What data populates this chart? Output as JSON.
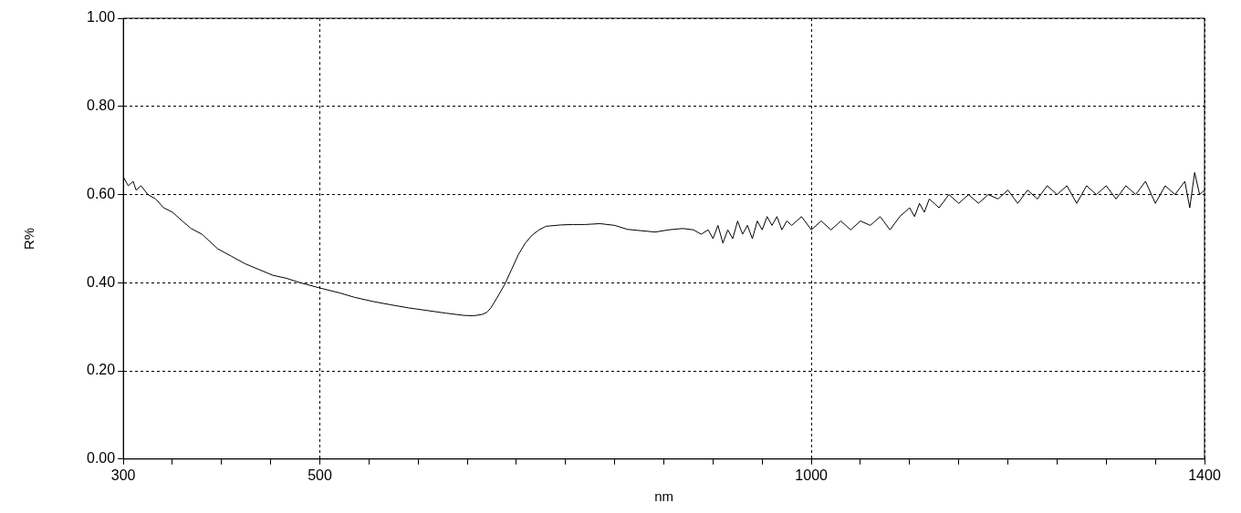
{
  "chart_data": {
    "type": "line",
    "xlabel": "nm",
    "ylabel": "R%",
    "xlim": [
      300,
      1400
    ],
    "ylim": [
      0,
      1
    ],
    "xticks": [
      300,
      {
        "value": 350,
        "label": null
      },
      {
        "value": 400,
        "label": null
      },
      {
        "value": 450,
        "label": null
      },
      500,
      {
        "value": 550,
        "label": null
      },
      {
        "value": 600,
        "label": null
      },
      {
        "value": 650,
        "label": null
      },
      {
        "value": 700,
        "label": null
      },
      {
        "value": 750,
        "label": null
      },
      {
        "value": 800,
        "label": null
      },
      {
        "value": 850,
        "label": null
      },
      {
        "value": 900,
        "label": null
      },
      {
        "value": 950,
        "label": null
      },
      1000,
      {
        "value": 1050,
        "label": null
      },
      {
        "value": 1100,
        "label": null
      },
      {
        "value": 1150,
        "label": null
      },
      {
        "value": 1200,
        "label": null
      },
      {
        "value": 1250,
        "label": null
      },
      {
        "value": 1300,
        "label": null
      },
      {
        "value": 1350,
        "label": null
      },
      1400
    ],
    "yticks": [
      {
        "value": 0,
        "label": "0.00"
      },
      {
        "value": 0.2,
        "label": "0.20"
      },
      {
        "value": 0.4,
        "label": "0.40"
      },
      {
        "value": 0.6,
        "label": "0.60"
      },
      {
        "value": 0.8,
        "label": "0.80"
      },
      {
        "value": 1,
        "label": "1.00"
      }
    ],
    "grid": true,
    "legend": false,
    "marker": "none",
    "series": [
      {
        "color": "#000000",
        "x": [
          300,
          305,
          310,
          313,
          318,
          325,
          333,
          341,
          350,
          360,
          369,
          380,
          396,
          410,
          424,
          438,
          452,
          466,
          480,
          500,
          520,
          535,
          555,
          572,
          590,
          609,
          628,
          646,
          656,
          665,
          670,
          674,
          680,
          688,
          695,
          702,
          709,
          716,
          723,
          730,
          745,
          757,
          770,
          785,
          800,
          813,
          827,
          841,
          855,
          869,
          880,
          888,
          895,
          900,
          905,
          910,
          915,
          920,
          925,
          930,
          935,
          940,
          945,
          950,
          955,
          960,
          965,
          970,
          975,
          980,
          990,
          1000,
          1010,
          1020,
          1030,
          1040,
          1050,
          1060,
          1070,
          1080,
          1090,
          1100,
          1105,
          1110,
          1115,
          1120,
          1130,
          1140,
          1150,
          1160,
          1170,
          1180,
          1190,
          1200,
          1210,
          1220,
          1230,
          1240,
          1250,
          1260,
          1270,
          1280,
          1290,
          1300,
          1310,
          1320,
          1330,
          1340,
          1350,
          1360,
          1370,
          1380,
          1385,
          1390,
          1395,
          1400
        ],
        "values": [
          0.64,
          0.62,
          0.63,
          0.61,
          0.62,
          0.6,
          0.59,
          0.57,
          0.56,
          0.54,
          0.523,
          0.51,
          0.477,
          0.46,
          0.443,
          0.43,
          0.417,
          0.41,
          0.4,
          0.388,
          0.377,
          0.367,
          0.357,
          0.35,
          0.343,
          0.337,
          0.331,
          0.326,
          0.325,
          0.328,
          0.333,
          0.343,
          0.365,
          0.396,
          0.43,
          0.464,
          0.49,
          0.508,
          0.52,
          0.528,
          0.531,
          0.532,
          0.532,
          0.534,
          0.53,
          0.521,
          0.518,
          0.515,
          0.52,
          0.523,
          0.52,
          0.51,
          0.52,
          0.5,
          0.53,
          0.49,
          0.52,
          0.5,
          0.54,
          0.51,
          0.53,
          0.5,
          0.54,
          0.52,
          0.55,
          0.53,
          0.55,
          0.52,
          0.54,
          0.53,
          0.55,
          0.52,
          0.54,
          0.52,
          0.54,
          0.52,
          0.54,
          0.53,
          0.55,
          0.52,
          0.55,
          0.57,
          0.55,
          0.58,
          0.56,
          0.59,
          0.57,
          0.6,
          0.58,
          0.6,
          0.58,
          0.6,
          0.59,
          0.61,
          0.58,
          0.61,
          0.59,
          0.62,
          0.6,
          0.62,
          0.58,
          0.62,
          0.6,
          0.62,
          0.59,
          0.62,
          0.6,
          0.63,
          0.58,
          0.62,
          0.6,
          0.63,
          0.57,
          0.65,
          0.6,
          0.61
        ]
      }
    ]
  }
}
